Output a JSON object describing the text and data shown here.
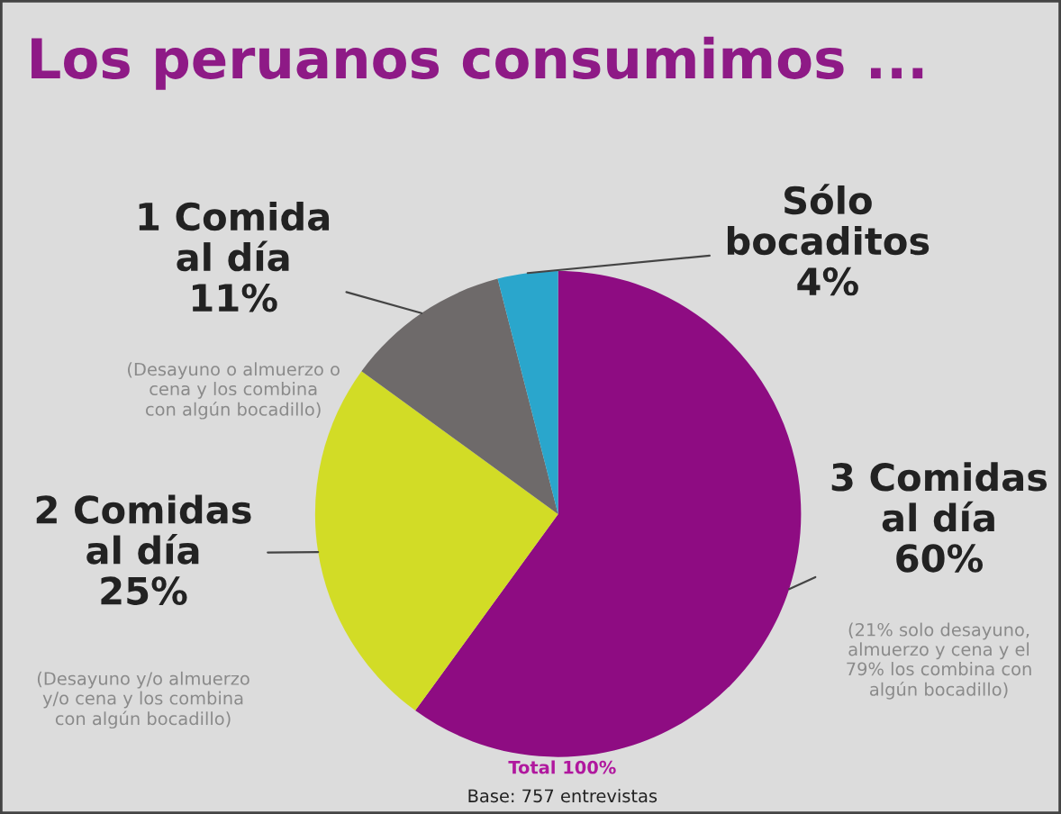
{
  "chart_data": {
    "type": "pie",
    "title": "Los peruanos consumimos ...",
    "categories": [
      "3 Comidas\nal día",
      "2 Comidas\nal día",
      "1 Comida\nal día",
      "Sólo\nbocaditos"
    ],
    "values": [
      60,
      25,
      11,
      4
    ],
    "value_labels": [
      "60%",
      "25%",
      "11%",
      "4%"
    ],
    "colors": [
      "#8e0c82",
      "#d2dc26",
      "#6e6a6a",
      "#2aa6cc"
    ],
    "annotations": [
      "(21% solo desayuno,\nalmuerzo y cena y el\n79% los combina con\nalgún bocadillo)",
      "(Desayuno y/o almuerzo\ny/o cena y los combina\ncon algún bocadillo)",
      "(Desayuno o almuerzo o\ncena y los combina\ncon algún bocadillo)",
      "Total 100%",
      "Base: 757 entrevistas"
    ],
    "legend": false
  }
}
